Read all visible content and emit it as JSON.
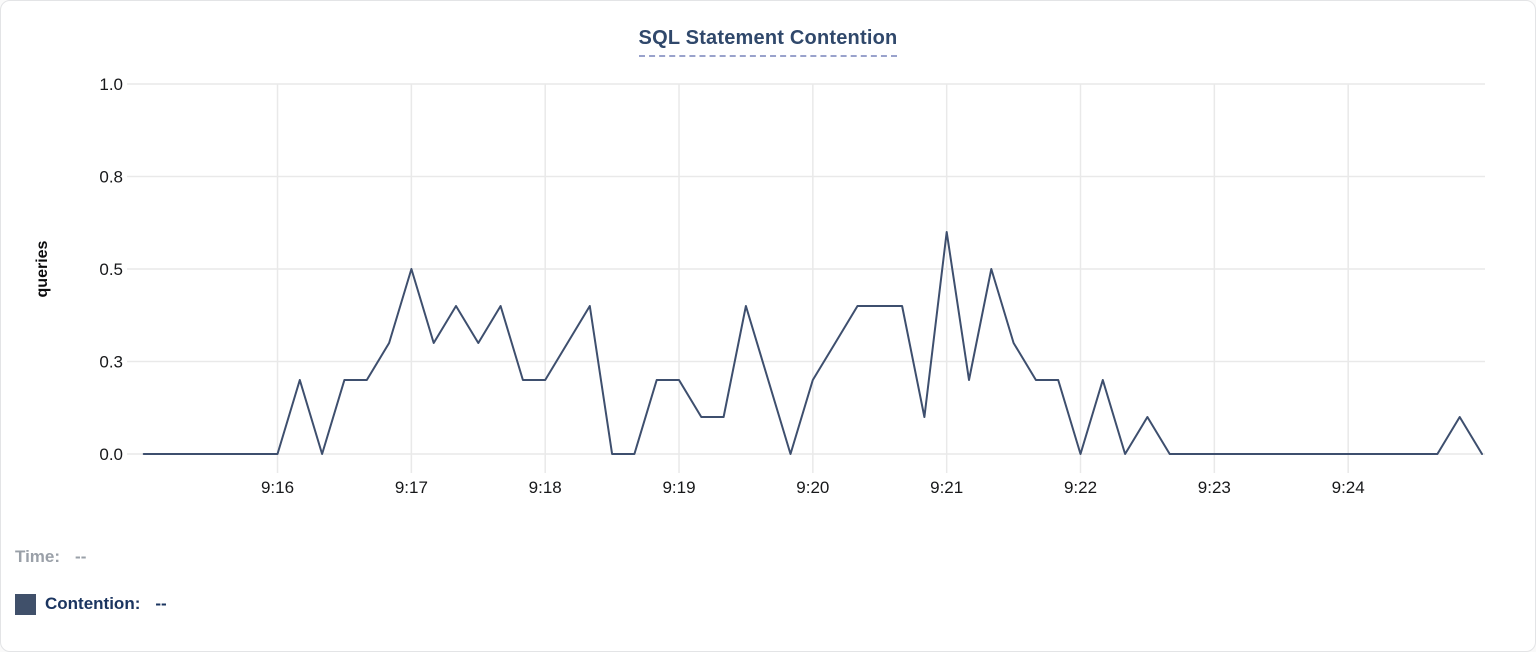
{
  "title": "SQL Statement Contention",
  "legend": {
    "time_label": "Time:",
    "time_value": "--",
    "series_label": "Contention:",
    "series_value": "--"
  },
  "colors": {
    "series_line": "#3e4f6e",
    "legend_swatch": "#40506a",
    "title_text": "#30486b",
    "gridline": "#e9e9e9",
    "tick_text": "#17181a",
    "muted_text": "#9aa0a8"
  },
  "chart_data": {
    "type": "line",
    "title": "SQL Statement Contention",
    "series_name": "Contention",
    "xlabel": "",
    "ylabel": "queries",
    "ylim": [
      0,
      1.0
    ],
    "grid": true,
    "legend_position": "bottom-left",
    "interval_seconds": 10,
    "x_start": "9:15:00",
    "x_end": "9:25:00",
    "y_tick_values": [
      0,
      0.25,
      0.5,
      0.75,
      1.0
    ],
    "y_tick_labels": [
      "0.0",
      "0.3",
      "0.5",
      "0.8",
      "1.0"
    ],
    "x_tick_labels": [
      "9:16",
      "9:17",
      "9:18",
      "9:19",
      "9:20",
      "9:21",
      "9:22",
      "9:23",
      "9:24"
    ],
    "x": [
      "9:15:00",
      "9:15:10",
      "9:15:20",
      "9:15:30",
      "9:15:40",
      "9:15:50",
      "9:16:00",
      "9:16:10",
      "9:16:20",
      "9:16:30",
      "9:16:40",
      "9:16:50",
      "9:17:00",
      "9:17:10",
      "9:17:20",
      "9:17:30",
      "9:17:40",
      "9:17:50",
      "9:18:00",
      "9:18:10",
      "9:18:20",
      "9:18:30",
      "9:18:40",
      "9:18:50",
      "9:19:00",
      "9:19:10",
      "9:19:20",
      "9:19:30",
      "9:19:40",
      "9:19:50",
      "9:20:00",
      "9:20:10",
      "9:20:20",
      "9:20:30",
      "9:20:40",
      "9:20:50",
      "9:21:00",
      "9:21:10",
      "9:21:20",
      "9:21:30",
      "9:21:40",
      "9:21:50",
      "9:22:00",
      "9:22:10",
      "9:22:20",
      "9:22:30",
      "9:22:40",
      "9:22:50",
      "9:23:00",
      "9:23:10",
      "9:23:20",
      "9:23:30",
      "9:23:40",
      "9:23:50",
      "9:24:00",
      "9:24:10",
      "9:24:20",
      "9:24:30",
      "9:24:40",
      "9:24:50",
      "9:25:00"
    ],
    "values": [
      0,
      0,
      0,
      0,
      0,
      0,
      0,
      0.2,
      0,
      0.2,
      0.2,
      0.3,
      0.5,
      0.3,
      0.4,
      0.3,
      0.4,
      0.2,
      0.2,
      0.3,
      0.4,
      0,
      0,
      0.2,
      0.2,
      0.1,
      0.1,
      0.4,
      0.2,
      0,
      0.2,
      0.3,
      0.4,
      0.4,
      0.4,
      0.1,
      0.6,
      0.2,
      0.5,
      0.3,
      0.2,
      0.2,
      0,
      0.2,
      0,
      0.1,
      0,
      0,
      0,
      0,
      0,
      0,
      0,
      0,
      0,
      0,
      0,
      0,
      0,
      0.1,
      0
    ]
  }
}
